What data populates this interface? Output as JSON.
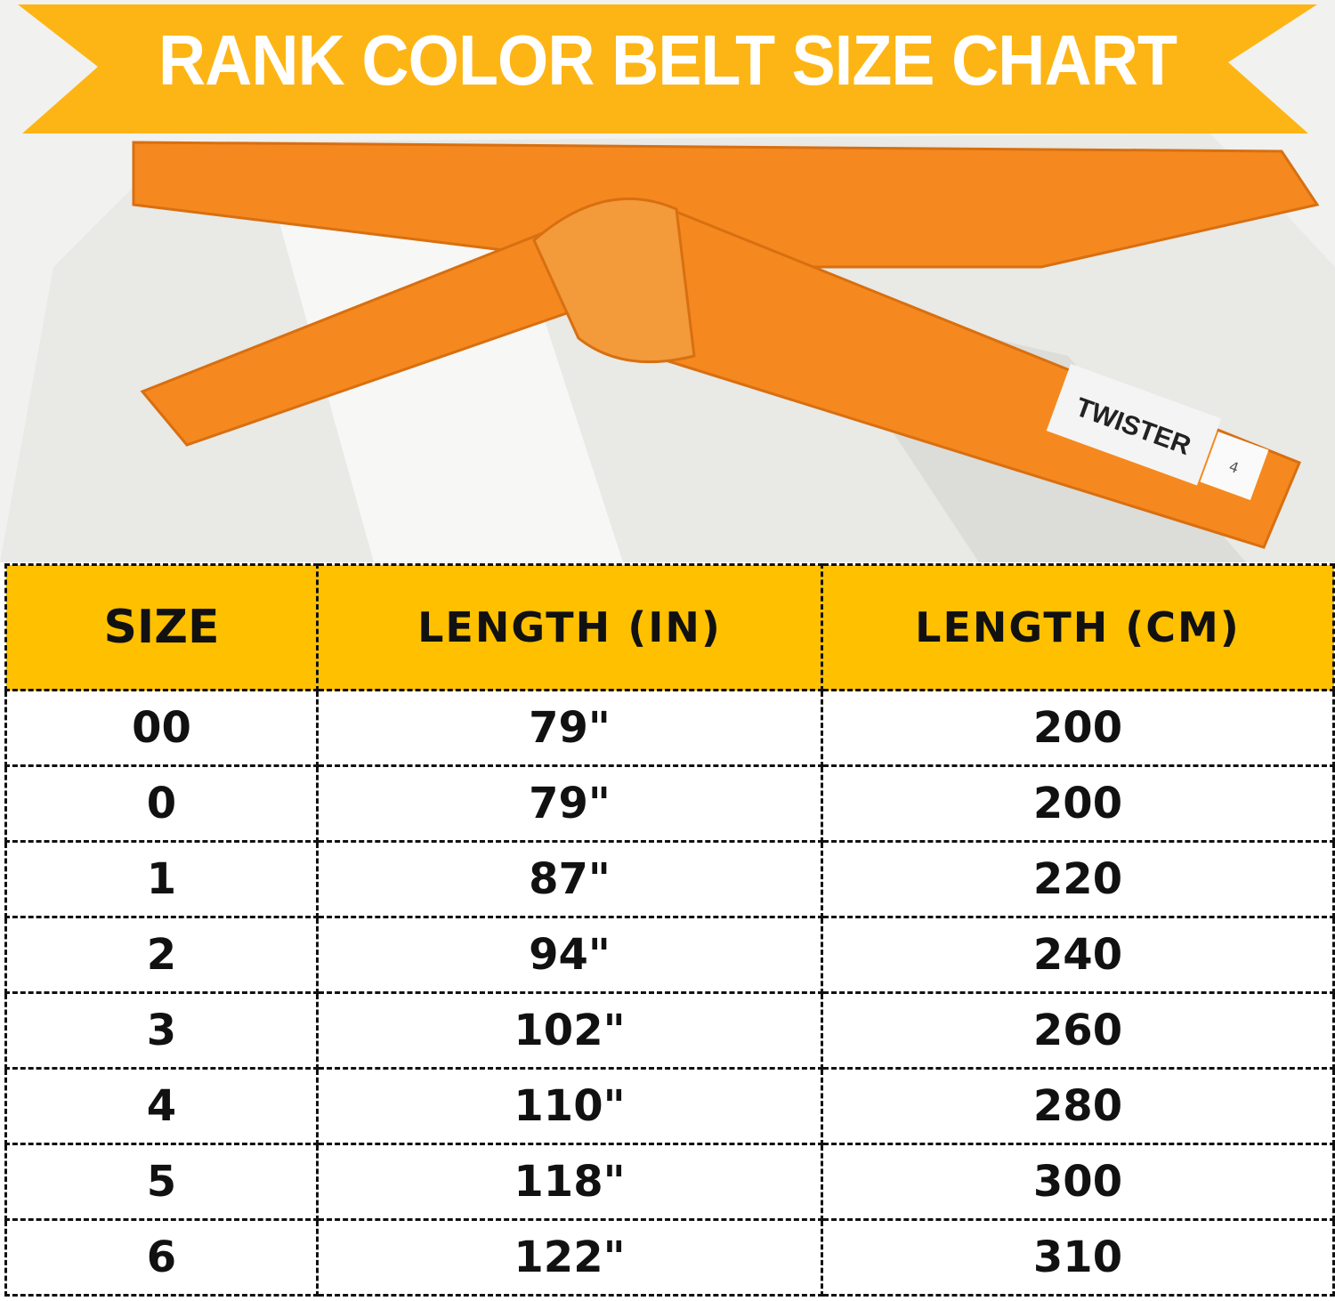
{
  "banner": {
    "title": "RANK COLOR BELT SIZE CHART",
    "color": "#FDB515"
  },
  "photo": {
    "belt_color": "#F5891F",
    "label_logo": "TWISTER",
    "label_size": "4"
  },
  "table": {
    "header_color": "#FFC000",
    "headers": [
      "SIZE",
      "LENGTH (IN)",
      "LENGTH (CM)"
    ],
    "rows": [
      [
        "00",
        "79\"",
        "200"
      ],
      [
        "0",
        "79\"",
        "200"
      ],
      [
        "1",
        "87\"",
        "220"
      ],
      [
        "2",
        "94\"",
        "240"
      ],
      [
        "3",
        "102\"",
        "260"
      ],
      [
        "4",
        "110\"",
        "280"
      ],
      [
        "5",
        "118\"",
        "300"
      ],
      [
        "6",
        "122\"",
        "310"
      ]
    ]
  }
}
